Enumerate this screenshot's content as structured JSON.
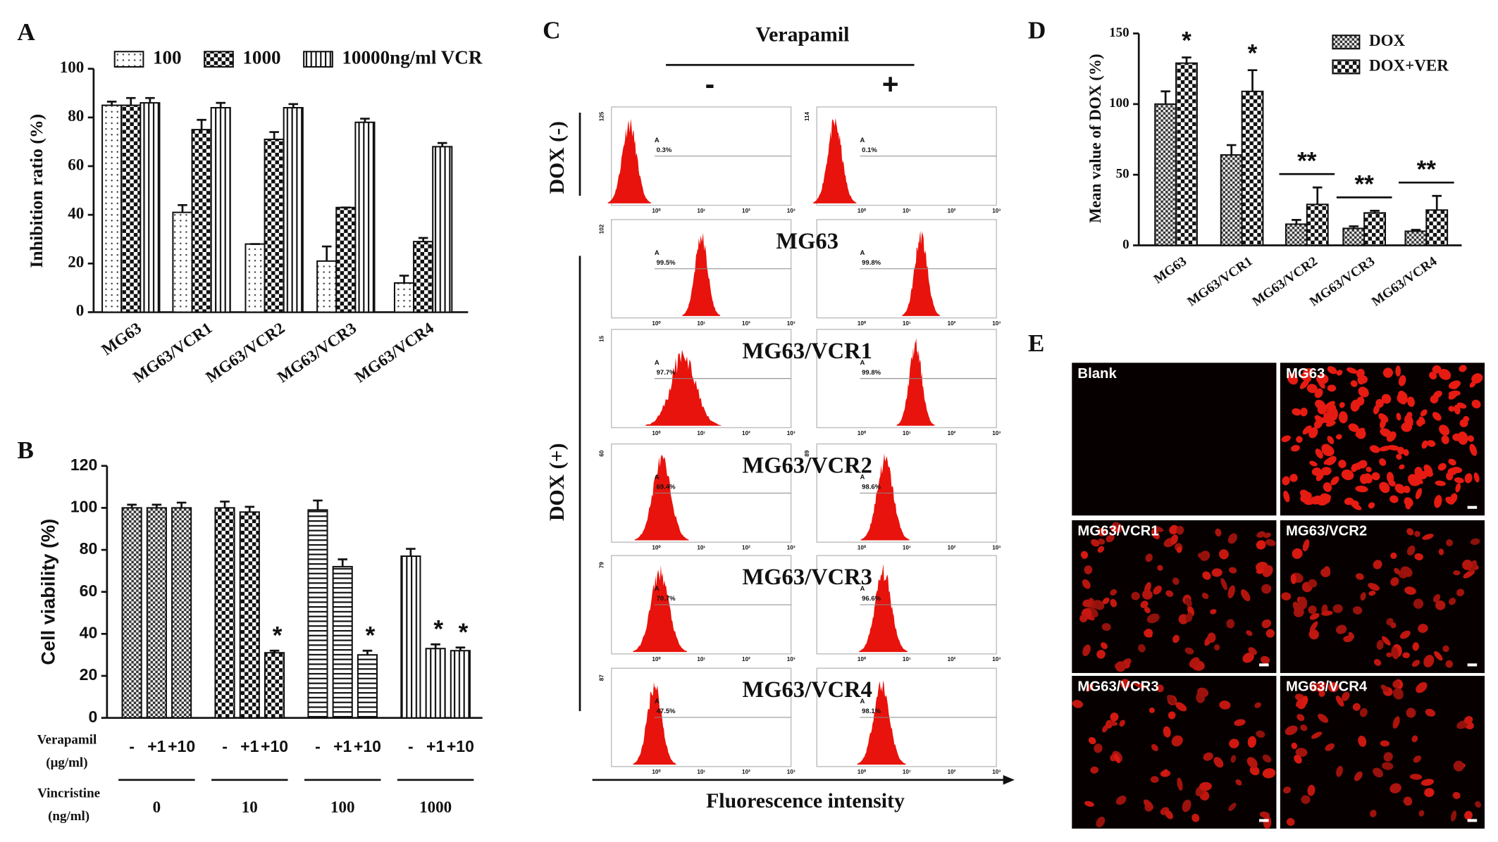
{
  "chart_data": [
    {
      "type": "bar",
      "panel": "A",
      "ylabel": "Inhibition ratio (%)",
      "legend": "top",
      "categories": [
        "MG63",
        "MG63/VCR1",
        "MG63/VCR2",
        "MG63/VCR3",
        "MG63/VCR4"
      ],
      "series": [
        {
          "name": "100",
          "pattern": "dots",
          "values": [
            85,
            41,
            28,
            21,
            12
          ],
          "errors": [
            1.5,
            3,
            0,
            6,
            3
          ]
        },
        {
          "name": "1000",
          "pattern": "checker",
          "values": [
            85,
            75,
            71,
            43,
            29
          ],
          "errors": [
            3,
            4,
            3,
            0,
            1.5
          ]
        },
        {
          "name": "10000ng/ml VCR",
          "pattern": "vlines",
          "values": [
            86,
            84,
            84,
            78,
            68
          ],
          "errors": [
            2,
            2,
            1.5,
            1.5,
            1.5
          ]
        }
      ],
      "ylim": [
        0,
        100
      ],
      "yticks": [
        0,
        20,
        40,
        60,
        80,
        100
      ]
    },
    {
      "type": "bar",
      "panel": "B",
      "ylabel": "Cell viability (%)",
      "categories": [
        "-",
        "+1",
        "+10",
        "-",
        "+1",
        "+10",
        "-",
        "+1",
        "+10",
        "-",
        "+1",
        "+10"
      ],
      "values": [
        100,
        100,
        100,
        100,
        98,
        31,
        99,
        72,
        30,
        77,
        33,
        32
      ],
      "errors": [
        1.5,
        1.5,
        2.5,
        3,
        2.5,
        1,
        4.5,
        3.5,
        2,
        3.5,
        2,
        1.5
      ],
      "significance": [
        null,
        null,
        null,
        null,
        null,
        "*",
        null,
        null,
        "*",
        null,
        "*",
        "*"
      ],
      "groups": [
        "0",
        "10",
        "100",
        "1000"
      ],
      "group_patterns": [
        "checker-fine",
        "checker",
        "hlines",
        "vlines"
      ],
      "row_labels": {
        "verapamil": [
          "Verapamil",
          "(μg/ml)"
        ],
        "vincristine": [
          "Vincristine",
          "(ng/ml)"
        ]
      },
      "ylim": [
        0,
        120
      ],
      "yticks": [
        0,
        20,
        40,
        60,
        80,
        100,
        120
      ]
    },
    {
      "type": "bar",
      "panel": "D",
      "ylabel": "Mean value of DOX (%)",
      "legend": "upper right",
      "categories": [
        "MG63",
        "MG63/VCR1",
        "MG63/VCR2",
        "MG63/VCR3",
        "MG63/VCR4"
      ],
      "series": [
        {
          "name": "DOX",
          "pattern": "checker-fine",
          "values": [
            100,
            64,
            15,
            12,
            10
          ],
          "errors": [
            9,
            7,
            3,
            1.5,
            1
          ]
        },
        {
          "name": "DOX+VER",
          "pattern": "checker",
          "values": [
            129,
            109,
            29,
            23,
            25
          ],
          "errors": [
            4,
            15,
            12,
            1.5,
            10
          ]
        }
      ],
      "significance": [
        "*",
        "*",
        "**",
        "**",
        "**"
      ],
      "ylim": [
        0,
        150
      ],
      "yticks": [
        0,
        50,
        100,
        150
      ]
    }
  ],
  "flow_panel": {
    "label": "C",
    "title": "Verapamil",
    "columns": [
      "-",
      "+"
    ],
    "row_groups": [
      "DOX (-)",
      "DOX (+)"
    ],
    "cell_lines": [
      "MG63",
      "MG63/VCR1",
      "MG63/VCR2",
      "MG63/VCR3",
      "MG63/VCR4"
    ],
    "gate_name": "A",
    "gated_percent": [
      [
        "0.3%",
        "0.1%"
      ],
      [
        "99.5%",
        "99.8%"
      ],
      [
        "97.7%",
        "99.8%"
      ],
      [
        "69.4%",
        "98.6%"
      ],
      [
        "70.7%",
        "96.6%"
      ],
      [
        "47.5%",
        "98.1%"
      ]
    ],
    "ymax_labels": [
      [
        "125",
        "114"
      ],
      [
        "102",
        null
      ],
      [
        "15",
        null
      ],
      [
        "60",
        "89"
      ],
      [
        "79",
        null
      ],
      [
        "87",
        null
      ]
    ],
    "xtick_labels": [
      "10⁰",
      "10¹",
      "10²",
      "10³"
    ],
    "xlabel": "Fluorescence intensity"
  },
  "image_panel": {
    "label": "E",
    "images": [
      "Blank",
      "MG63",
      "MG63/VCR1",
      "MG63/VCR2",
      "MG63/VCR3",
      "MG63/VCR4"
    ]
  }
}
